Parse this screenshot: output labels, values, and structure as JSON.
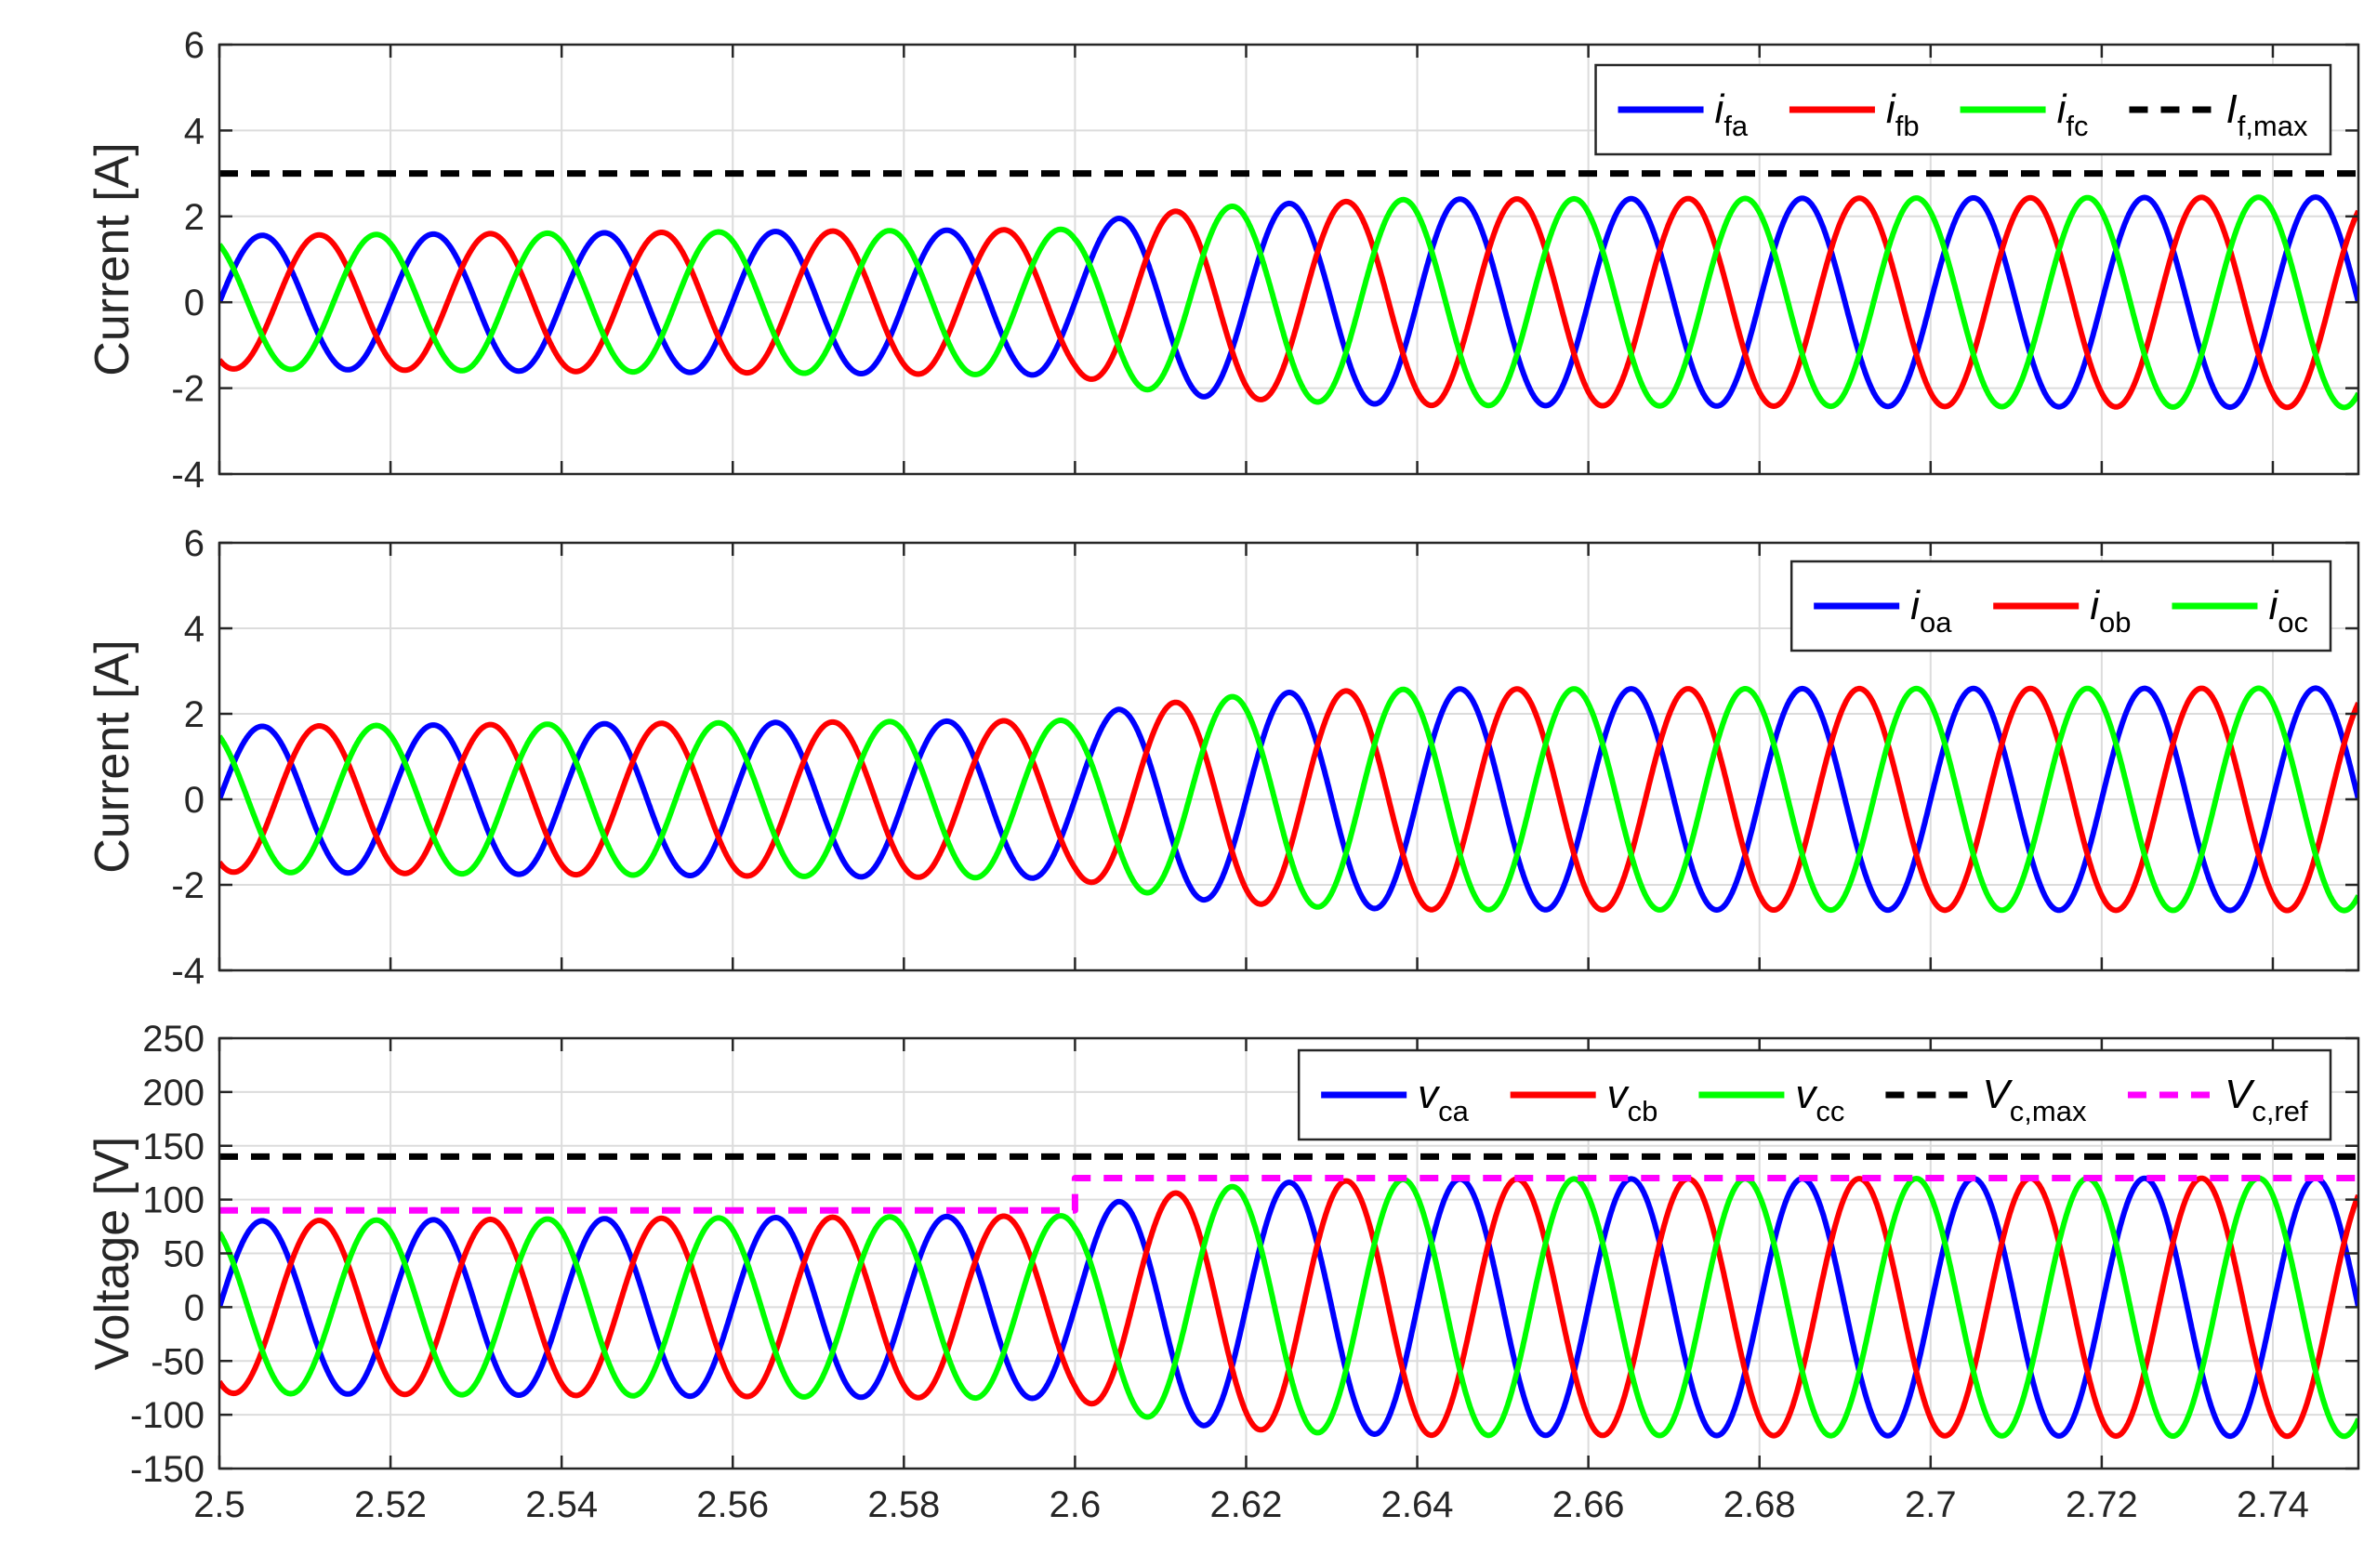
{
  "colors": {
    "phase_a": "#0000ff",
    "phase_b": "#ff0000",
    "phase_c": "#00ff00",
    "limit": "#000000",
    "reference": "#ff00ff",
    "grid": "#dcdcdc",
    "axes": "#262626"
  },
  "chart_data": [
    {
      "type": "line",
      "ylabel": "Current [A]",
      "xlabel": "",
      "xlim": [
        2.5,
        2.75
      ],
      "ylim": [
        -4,
        6
      ],
      "yticks": [
        -4,
        -2,
        0,
        2,
        4,
        6
      ],
      "xticks": [
        2.5,
        2.52,
        2.54,
        2.56,
        2.58,
        2.6,
        2.62,
        2.64,
        2.66,
        2.68,
        2.7,
        2.72,
        2.74
      ],
      "x_tick_labels_visible": false,
      "grid": true,
      "legend": "top-right, horizontal",
      "frequency_hz": 50,
      "series": [
        {
          "name": "i",
          "sub": "fa",
          "italic": true,
          "color": "#0000ff",
          "dashed": false,
          "kind": "sine",
          "phase_deg": 0,
          "amplitude_points": [
            [
              2.5,
              1.55
            ],
            [
              2.6,
              1.7
            ],
            [
              2.605,
              1.95
            ],
            [
              2.615,
              2.2
            ],
            [
              2.625,
              2.3
            ],
            [
              2.64,
              2.4
            ],
            [
              2.75,
              2.45
            ]
          ]
        },
        {
          "name": "i",
          "sub": "fb",
          "italic": true,
          "color": "#ff0000",
          "dashed": false,
          "kind": "sine",
          "phase_deg": -120,
          "amplitude_points": [
            [
              2.5,
              1.55
            ],
            [
              2.6,
              1.7
            ],
            [
              2.605,
              1.95
            ],
            [
              2.615,
              2.2
            ],
            [
              2.625,
              2.3
            ],
            [
              2.64,
              2.4
            ],
            [
              2.75,
              2.45
            ]
          ]
        },
        {
          "name": "i",
          "sub": "fc",
          "italic": true,
          "color": "#00ff00",
          "dashed": false,
          "kind": "sine",
          "phase_deg": 120,
          "amplitude_points": [
            [
              2.5,
              1.55
            ],
            [
              2.6,
              1.7
            ],
            [
              2.605,
              1.95
            ],
            [
              2.615,
              2.2
            ],
            [
              2.625,
              2.3
            ],
            [
              2.64,
              2.4
            ],
            [
              2.75,
              2.45
            ]
          ]
        },
        {
          "name": "I",
          "sub": "f,max",
          "italic": true,
          "color": "#000000",
          "dashed": true,
          "kind": "constant",
          "value": 3
        }
      ]
    },
    {
      "type": "line",
      "ylabel": "Current [A]",
      "xlabel": "",
      "xlim": [
        2.5,
        2.75
      ],
      "ylim": [
        -4,
        6
      ],
      "yticks": [
        -4,
        -2,
        0,
        2,
        4,
        6
      ],
      "xticks": [
        2.5,
        2.52,
        2.54,
        2.56,
        2.58,
        2.6,
        2.62,
        2.64,
        2.66,
        2.68,
        2.7,
        2.72,
        2.74
      ],
      "x_tick_labels_visible": false,
      "grid": true,
      "legend": "top-right, horizontal",
      "frequency_hz": 50,
      "series": [
        {
          "name": "i",
          "sub": "oa",
          "italic": true,
          "color": "#0000ff",
          "dashed": false,
          "kind": "sine",
          "phase_deg": 0,
          "amplitude_points": [
            [
              2.5,
              1.7
            ],
            [
              2.6,
              1.85
            ],
            [
              2.605,
              2.1
            ],
            [
              2.615,
              2.35
            ],
            [
              2.625,
              2.5
            ],
            [
              2.64,
              2.58
            ],
            [
              2.75,
              2.6
            ]
          ]
        },
        {
          "name": "i",
          "sub": "ob",
          "italic": true,
          "color": "#ff0000",
          "dashed": false,
          "kind": "sine",
          "phase_deg": -120,
          "amplitude_points": [
            [
              2.5,
              1.7
            ],
            [
              2.6,
              1.85
            ],
            [
              2.605,
              2.1
            ],
            [
              2.615,
              2.35
            ],
            [
              2.625,
              2.5
            ],
            [
              2.64,
              2.58
            ],
            [
              2.75,
              2.6
            ]
          ]
        },
        {
          "name": "i",
          "sub": "oc",
          "italic": true,
          "color": "#00ff00",
          "dashed": false,
          "kind": "sine",
          "phase_deg": 120,
          "amplitude_points": [
            [
              2.5,
              1.7
            ],
            [
              2.6,
              1.85
            ],
            [
              2.605,
              2.1
            ],
            [
              2.615,
              2.35
            ],
            [
              2.625,
              2.5
            ],
            [
              2.64,
              2.58
            ],
            [
              2.75,
              2.6
            ]
          ]
        }
      ]
    },
    {
      "type": "line",
      "ylabel": "Voltage [V]",
      "xlabel": "",
      "xlim": [
        2.5,
        2.75
      ],
      "ylim": [
        -150,
        250
      ],
      "yticks": [
        -150,
        -100,
        -50,
        0,
        50,
        100,
        150,
        200,
        250
      ],
      "xticks": [
        2.5,
        2.52,
        2.54,
        2.56,
        2.58,
        2.6,
        2.62,
        2.64,
        2.66,
        2.68,
        2.7,
        2.72,
        2.74
      ],
      "x_tick_labels_visible": true,
      "grid": true,
      "legend": "top-right, horizontal",
      "frequency_hz": 50,
      "series": [
        {
          "name": "v",
          "sub": "ca",
          "italic": true,
          "color": "#0000ff",
          "dashed": false,
          "kind": "sine",
          "phase_deg": 0,
          "amplitude_points": [
            [
              2.5,
              80
            ],
            [
              2.6,
              85
            ],
            [
              2.605,
              98
            ],
            [
              2.615,
              110
            ],
            [
              2.625,
              116
            ],
            [
              2.64,
              119
            ],
            [
              2.75,
              120
            ]
          ]
        },
        {
          "name": "v",
          "sub": "cb",
          "italic": true,
          "color": "#ff0000",
          "dashed": false,
          "kind": "sine",
          "phase_deg": -120,
          "amplitude_points": [
            [
              2.5,
              80
            ],
            [
              2.6,
              85
            ],
            [
              2.605,
              98
            ],
            [
              2.615,
              110
            ],
            [
              2.625,
              116
            ],
            [
              2.64,
              119
            ],
            [
              2.75,
              120
            ]
          ]
        },
        {
          "name": "v",
          "sub": "cc",
          "italic": true,
          "color": "#00ff00",
          "dashed": false,
          "kind": "sine",
          "phase_deg": 120,
          "amplitude_points": [
            [
              2.5,
              80
            ],
            [
              2.6,
              85
            ],
            [
              2.605,
              98
            ],
            [
              2.615,
              110
            ],
            [
              2.625,
              116
            ],
            [
              2.64,
              119
            ],
            [
              2.75,
              120
            ]
          ]
        },
        {
          "name": "V",
          "sub": "c,max",
          "italic": true,
          "color": "#000000",
          "dashed": true,
          "kind": "constant",
          "value": 140
        },
        {
          "name": "V",
          "sub": "c,ref",
          "italic": true,
          "color": "#ff00ff",
          "dashed": true,
          "kind": "step",
          "points": [
            [
              2.5,
              90
            ],
            [
              2.6,
              90
            ],
            [
              2.6,
              120
            ],
            [
              2.75,
              120
            ]
          ]
        }
      ]
    }
  ]
}
